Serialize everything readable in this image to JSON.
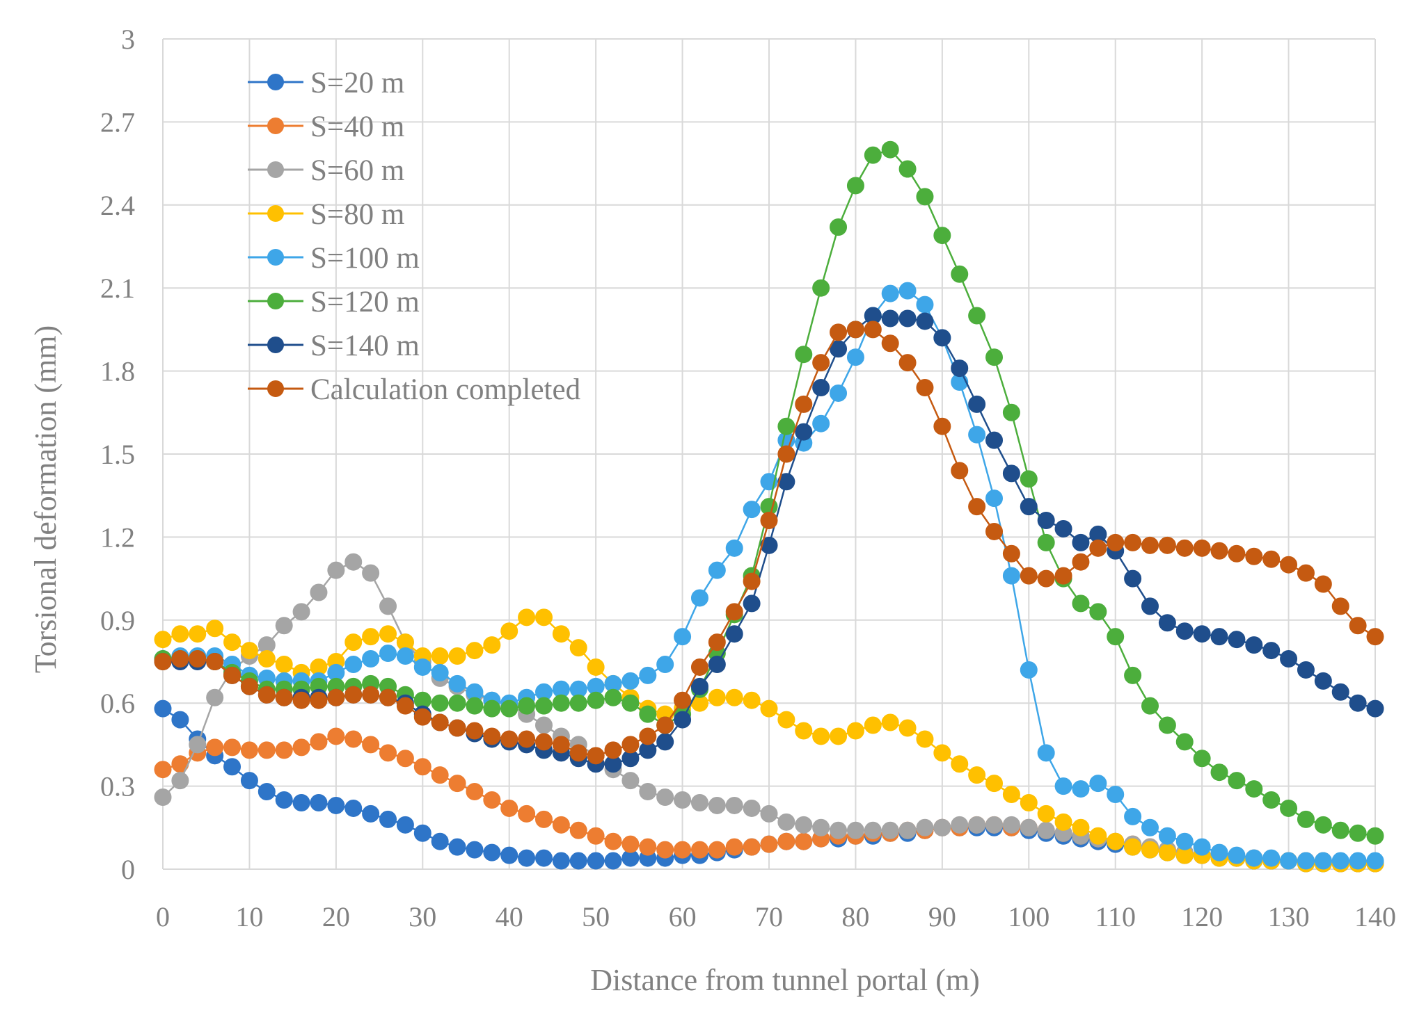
{
  "chart_data": {
    "type": "line",
    "title": "",
    "xlabel": "Distance from tunnel portal (m)",
    "ylabel": "Torsional deformation (mm)",
    "xlim": [
      0,
      140
    ],
    "ylim": [
      0,
      3
    ],
    "xticks": [
      0,
      10,
      20,
      30,
      40,
      50,
      60,
      70,
      80,
      90,
      100,
      110,
      120,
      130,
      140
    ],
    "yticks": [
      0,
      0.3,
      0.6,
      0.9,
      1.2,
      1.5,
      1.8,
      2.1,
      2.4,
      2.7,
      3
    ],
    "ytick_labels": [
      "0",
      "0.3",
      "0.6",
      "0.9",
      "1.2",
      "1.5",
      "1.8",
      "2.1",
      "2.4",
      "2.7",
      "3"
    ],
    "grid": true,
    "legend_position": "top-left",
    "x": [
      0,
      2,
      4,
      6,
      8,
      10,
      12,
      14,
      16,
      18,
      20,
      22,
      24,
      26,
      28,
      30,
      32,
      34,
      36,
      38,
      40,
      42,
      44,
      46,
      48,
      50,
      52,
      54,
      56,
      58,
      60,
      62,
      64,
      66,
      68,
      70,
      72,
      74,
      76,
      78,
      80,
      82,
      84,
      86,
      88,
      90,
      92,
      94,
      96,
      98,
      100,
      102,
      104,
      106,
      108,
      110,
      112,
      114,
      116,
      118,
      120,
      122,
      124,
      126,
      128,
      130,
      132,
      134,
      136,
      138,
      140
    ],
    "series": [
      {
        "name": "S=20 m",
        "color": "#2e75c8",
        "values": [
          0.58,
          0.54,
          0.47,
          0.41,
          0.37,
          0.32,
          0.28,
          0.25,
          0.24,
          0.24,
          0.23,
          0.22,
          0.2,
          0.18,
          0.16,
          0.13,
          0.1,
          0.08,
          0.07,
          0.06,
          0.05,
          0.04,
          0.04,
          0.03,
          0.03,
          0.03,
          0.03,
          0.04,
          0.04,
          0.04,
          0.05,
          0.05,
          0.06,
          0.07,
          0.08,
          0.09,
          0.1,
          0.1,
          0.11,
          0.11,
          0.12,
          0.12,
          0.13,
          0.13,
          0.14,
          0.15,
          0.15,
          0.15,
          0.15,
          0.15,
          0.14,
          0.13,
          0.12,
          0.11,
          0.1,
          0.09,
          0.08,
          0.07,
          0.06,
          0.05,
          0.05,
          0.04,
          0.04,
          0.03,
          0.03,
          0.03,
          0.02,
          0.02,
          0.02,
          0.02,
          0.02
        ]
      },
      {
        "name": "S=40 m",
        "color": "#ed7d31",
        "values": [
          0.36,
          0.38,
          0.42,
          0.44,
          0.44,
          0.43,
          0.43,
          0.43,
          0.44,
          0.46,
          0.48,
          0.47,
          0.45,
          0.42,
          0.4,
          0.37,
          0.34,
          0.31,
          0.28,
          0.25,
          0.22,
          0.2,
          0.18,
          0.16,
          0.14,
          0.12,
          0.1,
          0.09,
          0.08,
          0.07,
          0.07,
          0.07,
          0.07,
          0.08,
          0.08,
          0.09,
          0.1,
          0.1,
          0.11,
          0.12,
          0.12,
          0.13,
          0.13,
          0.14,
          0.14,
          0.15,
          0.15,
          0.16,
          0.16,
          0.15,
          0.15,
          0.14,
          0.13,
          0.12,
          0.11,
          0.1,
          0.09,
          0.08,
          0.07,
          0.06,
          0.05,
          0.05,
          0.04,
          0.04,
          0.03,
          0.03,
          0.03,
          0.03,
          0.02,
          0.02,
          0.02
        ]
      },
      {
        "name": "S=60 m",
        "color": "#a5a5a5",
        "values": [
          0.26,
          0.32,
          0.45,
          0.62,
          0.72,
          0.77,
          0.81,
          0.88,
          0.93,
          1.0,
          1.08,
          1.11,
          1.07,
          0.95,
          0.82,
          0.75,
          0.69,
          0.66,
          0.63,
          0.61,
          0.59,
          0.56,
          0.52,
          0.48,
          0.45,
          0.41,
          0.36,
          0.32,
          0.28,
          0.26,
          0.25,
          0.24,
          0.23,
          0.23,
          0.22,
          0.2,
          0.17,
          0.16,
          0.15,
          0.14,
          0.14,
          0.14,
          0.14,
          0.14,
          0.15,
          0.15,
          0.16,
          0.16,
          0.16,
          0.16,
          0.15,
          0.14,
          0.13,
          0.12,
          0.11,
          0.1,
          0.09,
          0.08,
          0.07,
          0.06,
          0.05,
          0.05,
          0.04,
          0.04,
          0.03,
          0.03,
          0.03,
          0.03,
          0.02,
          0.02,
          0.02
        ]
      },
      {
        "name": "S=80 m",
        "color": "#ffc000",
        "values": [
          0.83,
          0.85,
          0.85,
          0.87,
          0.82,
          0.79,
          0.76,
          0.74,
          0.71,
          0.73,
          0.75,
          0.82,
          0.84,
          0.85,
          0.82,
          0.77,
          0.77,
          0.77,
          0.79,
          0.81,
          0.86,
          0.91,
          0.91,
          0.85,
          0.8,
          0.73,
          0.67,
          0.62,
          0.58,
          0.56,
          0.58,
          0.6,
          0.62,
          0.62,
          0.61,
          0.58,
          0.54,
          0.5,
          0.48,
          0.48,
          0.5,
          0.52,
          0.53,
          0.51,
          0.47,
          0.42,
          0.38,
          0.34,
          0.31,
          0.27,
          0.24,
          0.2,
          0.17,
          0.15,
          0.12,
          0.1,
          0.08,
          0.07,
          0.06,
          0.05,
          0.05,
          0.04,
          0.04,
          0.03,
          0.03,
          0.03,
          0.02,
          0.02,
          0.02,
          0.02,
          0.02
        ]
      },
      {
        "name": "S=100 m",
        "color": "#3ea6e8",
        "values": [
          0.76,
          0.77,
          0.77,
          0.77,
          0.74,
          0.7,
          0.69,
          0.68,
          0.68,
          0.68,
          0.71,
          0.74,
          0.76,
          0.78,
          0.77,
          0.73,
          0.71,
          0.67,
          0.64,
          0.61,
          0.6,
          0.62,
          0.64,
          0.65,
          0.65,
          0.66,
          0.67,
          0.68,
          0.7,
          0.74,
          0.84,
          0.98,
          1.08,
          1.16,
          1.3,
          1.4,
          1.55,
          1.54,
          1.61,
          1.72,
          1.85,
          2.0,
          2.08,
          2.09,
          2.04,
          1.92,
          1.76,
          1.57,
          1.34,
          1.06,
          0.72,
          0.42,
          0.3,
          0.29,
          0.31,
          0.27,
          0.19,
          0.15,
          0.12,
          0.1,
          0.08,
          0.06,
          0.05,
          0.04,
          0.04,
          0.03,
          0.03,
          0.03,
          0.03,
          0.03,
          0.03
        ]
      },
      {
        "name": "S=120 m",
        "color": "#4cae3c",
        "values": [
          0.76,
          0.76,
          0.76,
          0.75,
          0.71,
          0.68,
          0.65,
          0.65,
          0.65,
          0.66,
          0.66,
          0.66,
          0.67,
          0.66,
          0.63,
          0.61,
          0.6,
          0.6,
          0.59,
          0.58,
          0.58,
          0.59,
          0.59,
          0.6,
          0.6,
          0.61,
          0.62,
          0.6,
          0.56,
          0.52,
          0.56,
          0.65,
          0.78,
          0.92,
          1.06,
          1.31,
          1.6,
          1.86,
          2.1,
          2.32,
          2.47,
          2.58,
          2.6,
          2.53,
          2.43,
          2.29,
          2.15,
          2.0,
          1.85,
          1.65,
          1.41,
          1.18,
          1.05,
          0.96,
          0.93,
          0.84,
          0.7,
          0.59,
          0.52,
          0.46,
          0.4,
          0.35,
          0.32,
          0.29,
          0.25,
          0.22,
          0.18,
          0.16,
          0.14,
          0.13,
          0.12
        ]
      },
      {
        "name": "S=140 m",
        "color": "#1f4e8c",
        "values": [
          0.75,
          0.75,
          0.75,
          0.75,
          0.7,
          0.66,
          0.63,
          0.62,
          0.62,
          0.62,
          0.62,
          0.63,
          0.63,
          0.62,
          0.6,
          0.56,
          0.53,
          0.51,
          0.49,
          0.47,
          0.46,
          0.45,
          0.43,
          0.42,
          0.4,
          0.38,
          0.38,
          0.4,
          0.43,
          0.46,
          0.54,
          0.66,
          0.74,
          0.85,
          0.96,
          1.17,
          1.4,
          1.58,
          1.74,
          1.88,
          1.95,
          2.0,
          1.99,
          1.99,
          1.98,
          1.92,
          1.81,
          1.68,
          1.55,
          1.43,
          1.31,
          1.26,
          1.23,
          1.18,
          1.21,
          1.15,
          1.05,
          0.95,
          0.89,
          0.86,
          0.85,
          0.84,
          0.83,
          0.81,
          0.79,
          0.76,
          0.72,
          0.68,
          0.64,
          0.6,
          0.58
        ]
      },
      {
        "name": "Calculation completed",
        "color": "#c55a11",
        "values": [
          0.75,
          0.76,
          0.76,
          0.75,
          0.7,
          0.66,
          0.63,
          0.62,
          0.61,
          0.61,
          0.62,
          0.63,
          0.63,
          0.62,
          0.59,
          0.55,
          0.53,
          0.51,
          0.5,
          0.48,
          0.47,
          0.47,
          0.46,
          0.45,
          0.42,
          0.41,
          0.43,
          0.45,
          0.48,
          0.52,
          0.61,
          0.73,
          0.82,
          0.93,
          1.04,
          1.26,
          1.5,
          1.68,
          1.83,
          1.94,
          1.95,
          1.95,
          1.9,
          1.83,
          1.74,
          1.6,
          1.44,
          1.31,
          1.22,
          1.14,
          1.06,
          1.05,
          1.06,
          1.11,
          1.16,
          1.18,
          1.18,
          1.17,
          1.17,
          1.16,
          1.16,
          1.15,
          1.14,
          1.13,
          1.12,
          1.1,
          1.07,
          1.03,
          0.95,
          0.88,
          0.84
        ]
      }
    ]
  }
}
